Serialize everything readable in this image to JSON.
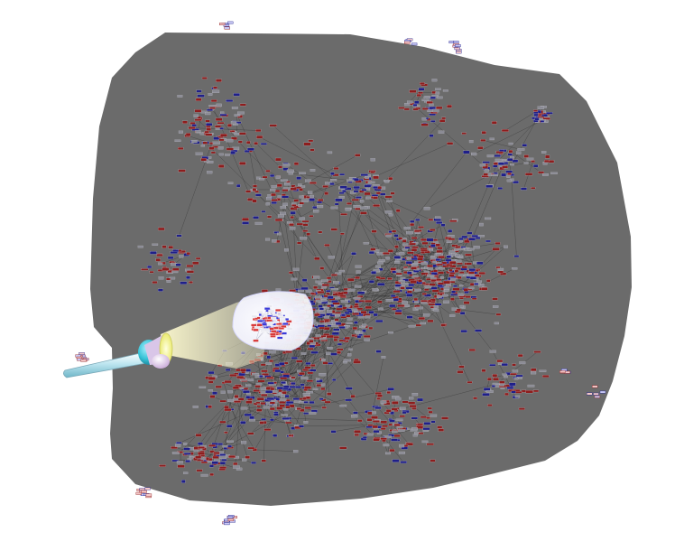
{
  "colors": {
    "background": "#ffffff",
    "shadow_region": "#6b6b6b",
    "edge": "#2a2a2a",
    "node_red": "#8e1d1d",
    "node_blue": "#1f1f8a",
    "node_white": "#e8e8f0",
    "spotlight_beam": "#fffbd0",
    "flashlight_body": "#bfe6f0",
    "flashlight_ring": "#35c2d6",
    "flashlight_lens": "#f5f57a"
  },
  "icons": {
    "flashlight": "flashlight-icon"
  }
}
